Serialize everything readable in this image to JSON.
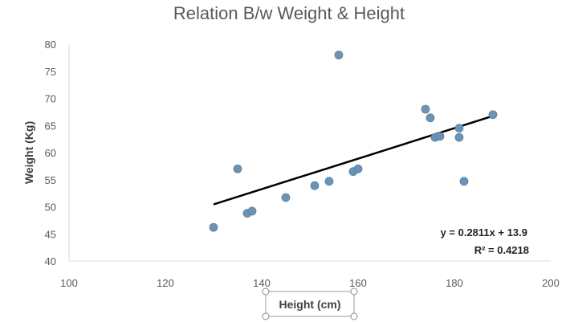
{
  "chart_data": {
    "type": "scatter",
    "title": "Relation B/w Weight & Height",
    "xlabel": "Height (cm)",
    "ylabel": "Weight (Kg)",
    "xlim": [
      100,
      200
    ],
    "ylim": [
      40,
      80
    ],
    "x_ticks": [
      100,
      120,
      140,
      160,
      180,
      200
    ],
    "y_ticks": [
      40,
      45,
      50,
      55,
      60,
      65,
      70,
      75,
      80
    ],
    "x_tick_labels": [
      "100",
      "120",
      "140",
      "160",
      "180",
      "200"
    ],
    "y_tick_labels": [
      "40",
      "45",
      "50",
      "55",
      "60",
      "65",
      "70",
      "75",
      "80"
    ],
    "grid": false,
    "point_color": "#6B93B5",
    "series": [
      {
        "name": "Weight",
        "points": [
          {
            "x": 130,
            "y": 46.2
          },
          {
            "x": 135,
            "y": 57
          },
          {
            "x": 137,
            "y": 48.8
          },
          {
            "x": 138,
            "y": 49.2
          },
          {
            "x": 145,
            "y": 51.7
          },
          {
            "x": 151,
            "y": 53.9
          },
          {
            "x": 154,
            "y": 54.7
          },
          {
            "x": 156,
            "y": 78
          },
          {
            "x": 159,
            "y": 56.5
          },
          {
            "x": 160,
            "y": 57
          },
          {
            "x": 174,
            "y": 68
          },
          {
            "x": 175,
            "y": 66.4
          },
          {
            "x": 176,
            "y": 62.8
          },
          {
            "x": 177,
            "y": 63
          },
          {
            "x": 181,
            "y": 62.8
          },
          {
            "x": 181,
            "y": 64.5
          },
          {
            "x": 182,
            "y": 54.7
          },
          {
            "x": 188,
            "y": 67
          }
        ]
      }
    ],
    "trendline": {
      "type": "linear",
      "slope": 0.2811,
      "intercept": 13.9,
      "x_range": [
        130,
        188
      ],
      "color": "#000000",
      "equation_label": "y = 0.2811x + 13.9",
      "r2_label": "R² = 0.4218"
    }
  }
}
